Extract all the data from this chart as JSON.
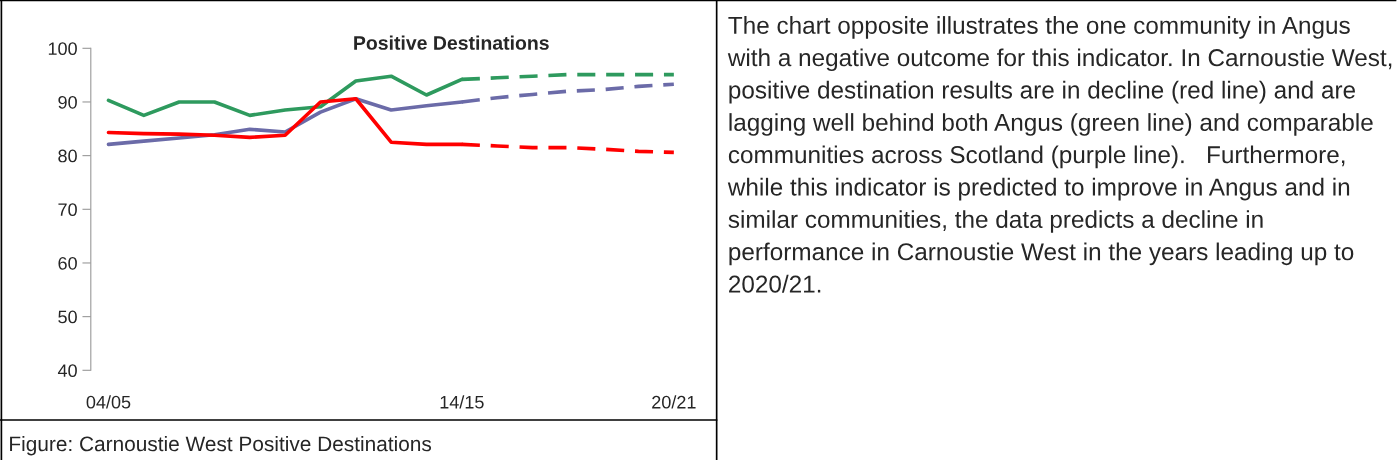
{
  "chart_data": {
    "type": "line",
    "title": "Positive Destinations",
    "categories": [
      "04/05",
      null,
      null,
      null,
      null,
      null,
      null,
      null,
      null,
      null,
      "14/15",
      null,
      null,
      null,
      null,
      null,
      "20/21"
    ],
    "series": [
      {
        "color": "#2e9a5e",
        "line_style": "solid",
        "values": [
          90.3,
          87.5,
          90,
          90,
          87.5,
          88.5,
          89.1,
          93.9,
          94.8,
          91.3,
          94.2,
          null,
          null,
          null,
          null,
          null,
          null
        ]
      },
      {
        "color": "#2e9a5e",
        "line_style": "dashed",
        "values": [
          null,
          null,
          null,
          null,
          null,
          null,
          null,
          null,
          null,
          null,
          94.2,
          94.5,
          94.8,
          95.1,
          95.1,
          95.1,
          95.1
        ]
      },
      {
        "color": "#6b6ba8",
        "line_style": "solid",
        "values": [
          82.1,
          82.7,
          83.3,
          83.9,
          84.9,
          84.4,
          88.1,
          90.6,
          88.5,
          89.3,
          90,
          null,
          null,
          null,
          null,
          null,
          null
        ]
      },
      {
        "color": "#6b6ba8",
        "line_style": "dashed",
        "values": [
          null,
          null,
          null,
          null,
          null,
          null,
          null,
          null,
          null,
          null,
          90,
          90.8,
          91.4,
          92,
          92.3,
          92.9,
          93.3
        ]
      },
      {
        "color": "#ff0000",
        "line_style": "solid",
        "values": [
          84.3,
          84.1,
          84,
          83.8,
          83.4,
          83.8,
          90,
          90.6,
          82.5,
          82.1,
          82.1,
          null,
          null,
          null,
          null,
          null,
          null
        ]
      },
      {
        "color": "#ff0000",
        "line_style": "dashed",
        "values": [
          null,
          null,
          null,
          null,
          null,
          null,
          null,
          null,
          null,
          null,
          82.1,
          81.8,
          81.5,
          81.5,
          81.2,
          80.8,
          80.6
        ]
      }
    ],
    "ylim": [
      40,
      100
    ],
    "yticks": [
      40,
      50,
      60,
      70,
      80,
      90,
      100
    ],
    "grid": false,
    "marker": "none",
    "annotations": [
      "Figure: Carnoustie West Positive Destinations",
      "The chart opposite illustrates the one community in Angus with a negative outcome for this indicator. In Carnoustie West, positive destination results are in decline (red line) and are lagging well behind both Angus (green line) and comparable communities across Scotland (purple line).   Furthermore, while this indicator is predicted to improve in Angus and in similar communities, the data predicts a decline in performance in Carnoustie West in the years leading up to 2020/21."
    ]
  }
}
